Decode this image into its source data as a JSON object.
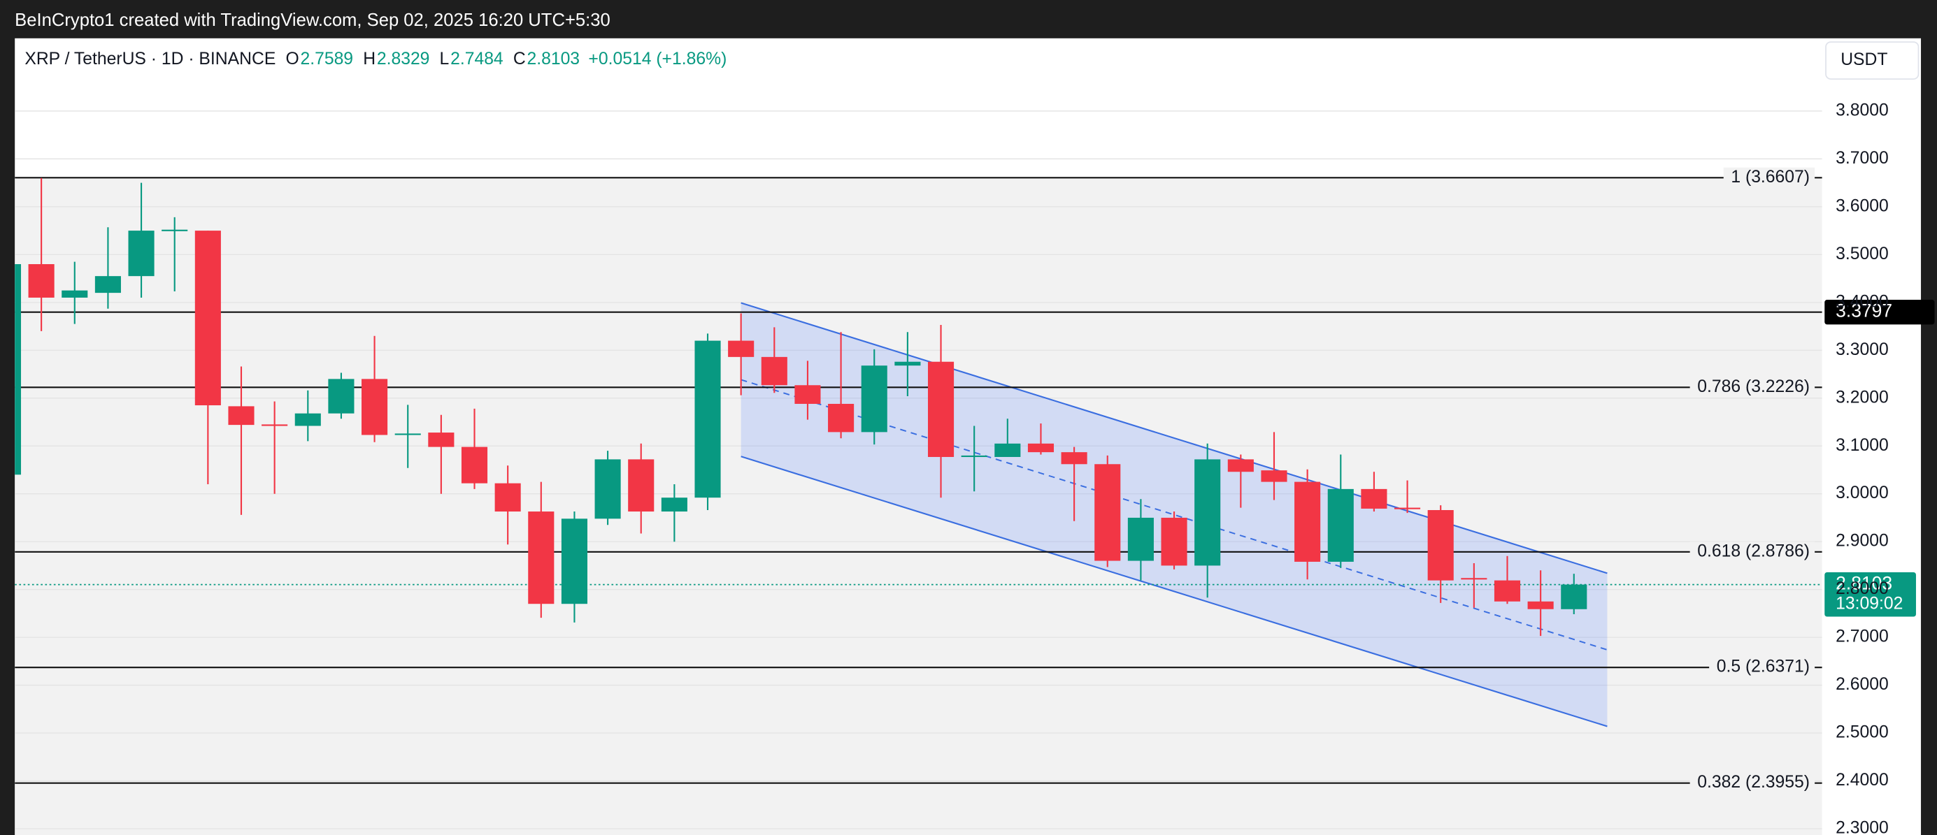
{
  "header": {
    "title": "BeInCrypto1 created with TradingView.com, Sep 02, 2025 16:20 UTC+5:30"
  },
  "chart_data": {
    "type": "candlestick",
    "legend": {
      "symbol": "XRP / TetherUS · 1D · BINANCE",
      "fields": [
        {
          "key": "O",
          "value": "2.7589"
        },
        {
          "key": "H",
          "value": "2.8329"
        },
        {
          "key": "L",
          "value": "2.7484"
        },
        {
          "key": "C",
          "value": "2.8103"
        }
      ],
      "change": "+0.0514 (+1.86%)"
    },
    "currency": "USDT",
    "up_color": "#089981",
    "down_color": "#f23645",
    "open": [
      3.04,
      3.48,
      3.41,
      3.42,
      3.455,
      3.55,
      3.55,
      3.183,
      3.145,
      3.142,
      3.168,
      3.24,
      3.125,
      3.128,
      3.098,
      3.022,
      2.963,
      2.77,
      2.948,
      3.072,
      2.963,
      2.992,
      3.32,
      3.286,
      3.227,
      3.188,
      3.129,
      3.268,
      3.276,
      3.079,
      3.077,
      3.105,
      3.087,
      3.062,
      2.86,
      2.95,
      2.85,
      3.072,
      3.049,
      3.025,
      2.858,
      3.01,
      2.971,
      2.966,
      2.824,
      2.819,
      2.775,
      2.7589
    ],
    "high": [
      3.48,
      3.66,
      3.485,
      3.557,
      3.65,
      3.578,
      3.55,
      3.266,
      3.193,
      3.216,
      3.253,
      3.33,
      3.186,
      3.165,
      3.178,
      3.059,
      3.025,
      2.963,
      3.09,
      3.105,
      3.02,
      3.335,
      3.377,
      3.348,
      3.278,
      3.338,
      3.302,
      3.338,
      3.353,
      3.142,
      3.157,
      3.147,
      3.098,
      3.08,
      2.989,
      2.963,
      3.105,
      3.082,
      3.129,
      3.051,
      3.082,
      3.046,
      3.028,
      2.976,
      2.855,
      2.87,
      2.84,
      2.8329
    ],
    "low": [
      3.04,
      3.34,
      3.355,
      3.387,
      3.41,
      3.423,
      3.02,
      2.956,
      3.0,
      3.11,
      3.157,
      3.108,
      3.054,
      3.0,
      3.01,
      2.894,
      2.741,
      2.731,
      2.935,
      2.917,
      2.9,
      2.966,
      3.206,
      3.211,
      3.155,
      3.116,
      3.103,
      3.204,
      2.992,
      3.005,
      3.077,
      3.082,
      2.943,
      2.847,
      2.819,
      2.842,
      2.783,
      2.971,
      2.987,
      2.821,
      2.845,
      2.963,
      2.96,
      2.772,
      2.762,
      2.77,
      2.703,
      2.7484
    ],
    "close": [
      3.48,
      3.41,
      3.425,
      3.455,
      3.55,
      3.552,
      3.185,
      3.144,
      3.142,
      3.168,
      3.24,
      3.123,
      3.126,
      3.098,
      3.022,
      2.963,
      2.77,
      2.948,
      3.072,
      2.963,
      2.992,
      3.32,
      3.286,
      3.227,
      3.188,
      3.129,
      3.268,
      3.276,
      3.077,
      3.08,
      3.105,
      3.087,
      3.062,
      2.86,
      2.95,
      2.85,
      3.072,
      3.046,
      3.025,
      2.858,
      3.01,
      2.969,
      2.968,
      2.819,
      2.822,
      2.775,
      2.759,
      2.8103
    ],
    "ylim": [
      2.287,
      3.952
    ],
    "yticks": [
      {
        "value": 2.3,
        "label": "2.3000"
      },
      {
        "value": 2.4,
        "label": "2.4000"
      },
      {
        "value": 2.5,
        "label": "2.5000"
      },
      {
        "value": 2.6,
        "label": "2.6000"
      },
      {
        "value": 2.7,
        "label": "2.7000"
      },
      {
        "value": 2.8,
        "label": "2.8000"
      },
      {
        "value": 2.9,
        "label": "2.9000"
      },
      {
        "value": 3.0,
        "label": "3.0000"
      },
      {
        "value": 3.1,
        "label": "3.1000"
      },
      {
        "value": 3.2,
        "label": "3.2000"
      },
      {
        "value": 3.3,
        "label": "3.3000"
      },
      {
        "value": 3.4,
        "label": "3.4000"
      },
      {
        "value": 3.5,
        "label": "3.5000"
      },
      {
        "value": 3.6,
        "label": "3.6000"
      },
      {
        "value": 3.7,
        "label": "3.7000"
      },
      {
        "value": 3.8,
        "label": "3.8000"
      }
    ],
    "grid": true,
    "levels": [
      {
        "value": 3.6607,
        "label": "1 (3.6607)"
      },
      {
        "value": 3.2226,
        "label": "0.786 (3.2226)"
      },
      {
        "value": 2.8786,
        "label": "0.618 (2.8786)"
      },
      {
        "value": 2.6371,
        "label": "0.5 (2.6371)"
      },
      {
        "value": 2.3955,
        "label": "0.382 (2.3955)"
      }
    ],
    "price_line": {
      "value": 3.3797,
      "label": "3.3797"
    },
    "last_price": {
      "value": 2.8103,
      "label": "2.8103",
      "countdown": "13:09:02"
    },
    "channel": {
      "x": [
        22,
        48
      ],
      "upper": [
        3.399,
        2.834
      ],
      "lower": [
        3.078,
        2.514
      ]
    }
  }
}
